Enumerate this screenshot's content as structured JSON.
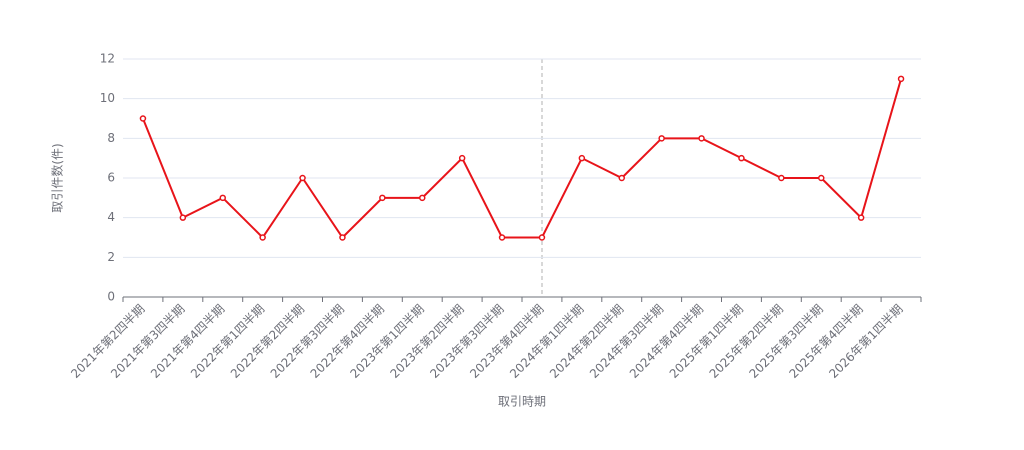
{
  "chart_data": {
    "type": "line",
    "x_label": "取引時期",
    "y_label": "取引件数(件)",
    "categories": [
      "2021年第2四半期",
      "2021年第3四半期",
      "2021年第4四半期",
      "2022年第1四半期",
      "2022年第2四半期",
      "2022年第3四半期",
      "2022年第4四半期",
      "2023年第1四半期",
      "2023年第2四半期",
      "2023年第3四半期",
      "2023年第4四半期",
      "2024年第1四半期",
      "2024年第2四半期",
      "2024年第3四半期",
      "2024年第4四半期",
      "2025年第1四半期",
      "2025年第2四半期",
      "2025年第3四半期",
      "2025年第4四半期",
      "2026年第1四半期"
    ],
    "values": [
      9,
      4,
      5,
      3,
      6,
      3,
      5,
      5,
      7,
      3,
      3,
      7,
      6,
      8,
      8,
      7,
      6,
      6,
      4,
      11
    ],
    "color": "#e8141a",
    "ylim": [
      0,
      12
    ],
    "yticks": [
      0,
      2,
      4,
      6,
      8,
      10,
      12
    ],
    "grid": true
  }
}
